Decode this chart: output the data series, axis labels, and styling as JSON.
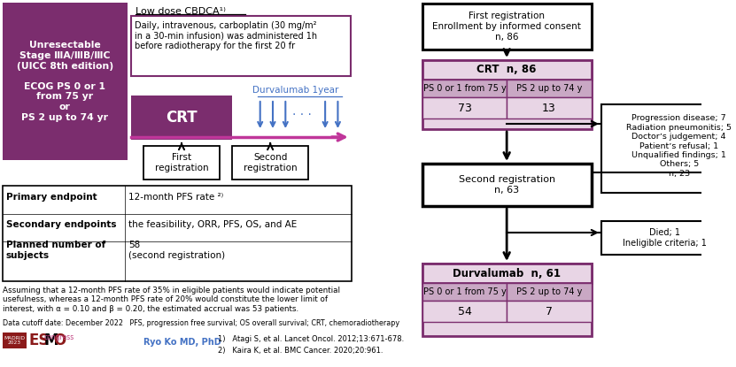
{
  "bg_color": "#ffffff",
  "purple_dark": "#7B2D6E",
  "purple_light": "#E8D5E5",
  "purple_header": "#C9A8C4",
  "pink_arrow": "#C0369A",
  "blue_arrow": "#4472C4",
  "left_box_text": "Unresectable\nStage ⅢA/ⅢB/ⅢC\n(UICC 8th edition)\n\nECOG PS 0 or 1\nfrom 75 yr\nor\nPS 2 up to 74 yr",
  "cbdca_title": "Low dose CBDCA¹⁾",
  "cbdca_text": "Daily, intravenous, carboplatin (30 mg/m²\nin a 30-min infusion) was administered 1h\nbefore radiotherapy for the first 20 fr",
  "durvalumab_label": "Durvalumab 1year",
  "crt_label": "CRT",
  "first_reg_label": "First\nregistration",
  "second_reg_label": "Second\nregistration",
  "endpoint_rows": [
    [
      "Primary endpoint",
      "12-month PFS rate ²⁾"
    ],
    [
      "Secondary endpoints",
      "the feasibility, ORR, PFS, OS, and AE"
    ],
    [
      "Planned number of\nsubjects",
      "58\n(second registration)"
    ]
  ],
  "assumption_text": "Assuming that a 12-month PFS rate of 35% in eligible patients would indicate potential\nusefulness, whereas a 12-month PFS rate of 20% would constitute the lower limit of\ninterest, with α = 0.10 and β = 0.20, the estimated accrual was 53 patients.",
  "cutoff_text": "Data cutoff date: December 2022   PFS, progression free survival; OS overall survival; CRT, chemoradiotherapy",
  "ryo_text": "Ryo Ko MD, PhD",
  "ref1": "1)   Atagi S, et al. Lancet Oncol. 2012;13:671-678.",
  "ref2": "2)   Kaira K, et al. BMC Cancer. 2020;20:961.",
  "flow_first_reg": "First registration\nEnrollment by informed consent\nn, 86",
  "flow_crt_header": "CRT  n, 86",
  "flow_crt_col1_header": "PS 0 or 1 from 75 y",
  "flow_crt_col2_header": "PS 2 up to 74 y",
  "flow_crt_col1_val": "73",
  "flow_crt_col2_val": "13",
  "flow_exclusion": "Progression disease; 7\nRadiation pneumonitis; 5\nDoctorʼs judgement; 4\nPatientʼs refusal; 1\nUnqualified findings; 1\nOthers; 5\nn, 23",
  "flow_second_reg": "Second registration\nn, 63",
  "flow_ineligible": "Died; 1\nIneligible criteria; 1",
  "flow_durva_header": "Durvalumab  n, 61",
  "flow_durva_col1_header": "PS 0 or 1 from 75 y",
  "flow_durva_col2_header": "PS 2 up to 74 y",
  "flow_durva_col1_val": "54",
  "flow_durva_col2_val": "7"
}
